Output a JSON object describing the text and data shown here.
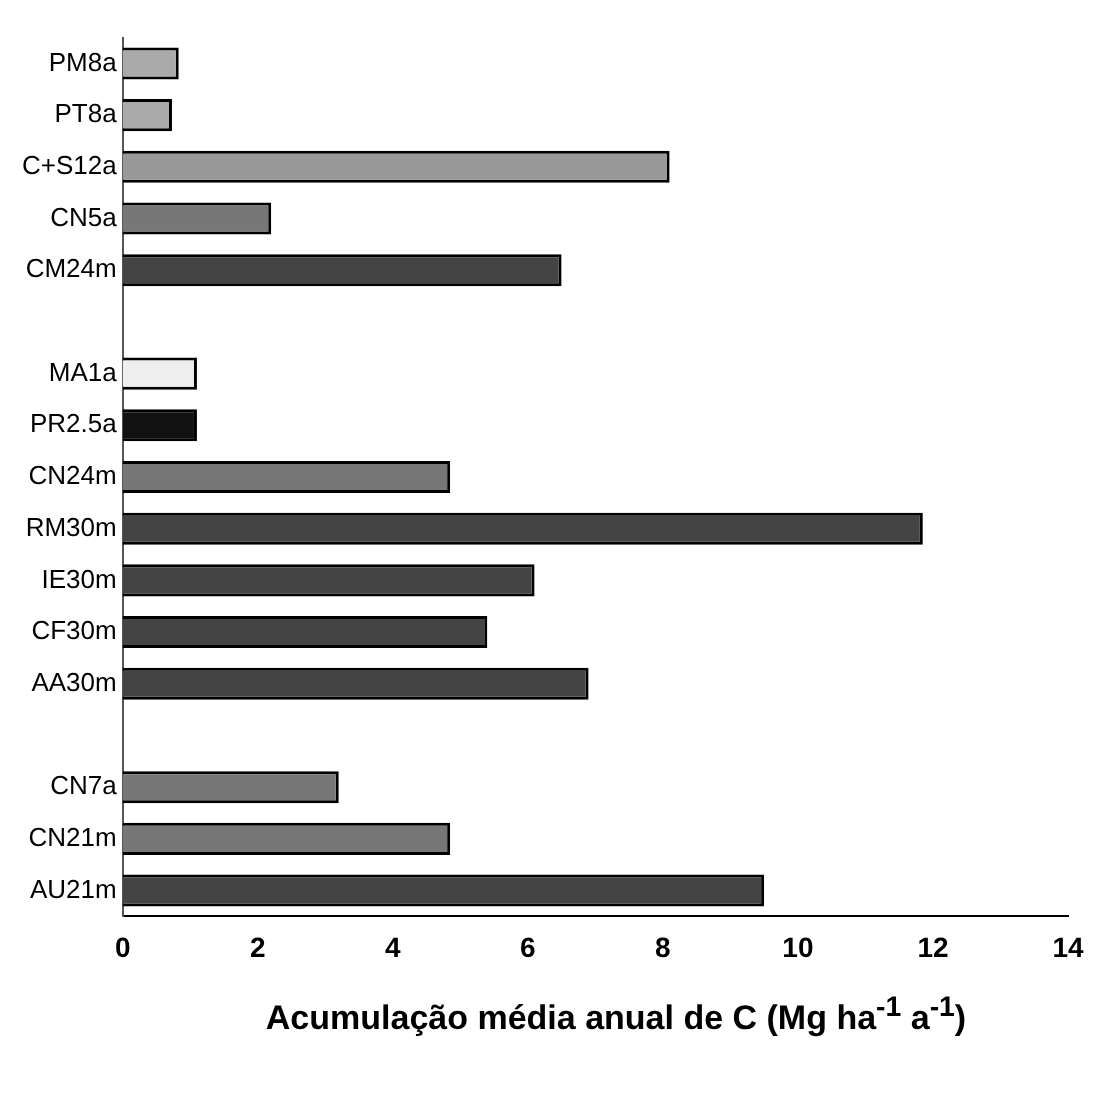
{
  "chart_data": {
    "type": "bar",
    "orientation": "horizontal",
    "xlabel": "Acumulação média anual de C (Mg ha$^{-1}$ a$^{-1}$)",
    "categories": [
      "PM8a",
      "PT8a",
      "C+S12a",
      "CN5a",
      "CM24m",
      null,
      "MA1a",
      "PR2.5a",
      "CN24m",
      "RM30m",
      "IE30m",
      "CF30m",
      "AA30m",
      null,
      "CN7a",
      "CN21m",
      "AU21m"
    ],
    "values": [
      0.83,
      0.73,
      8.1,
      2.2,
      6.5,
      null,
      1.1,
      1.1,
      4.85,
      11.85,
      6.1,
      5.4,
      6.9,
      null,
      3.2,
      4.85,
      9.5
    ],
    "colors": [
      "#aaaaaa",
      "#aaaaaa",
      "#999999",
      "#777777",
      "#444444",
      "#444444",
      "#eeeeee",
      "#111111",
      "#777777",
      "#444444",
      "#444444",
      "#444444",
      "#444444",
      "#444444",
      "#777777",
      "#777777",
      "#444444"
    ],
    "xlim": [
      0,
      14
    ],
    "xticks": [
      0,
      2,
      4,
      6,
      8,
      10,
      12,
      14
    ],
    "grid": false,
    "legend": false
  }
}
